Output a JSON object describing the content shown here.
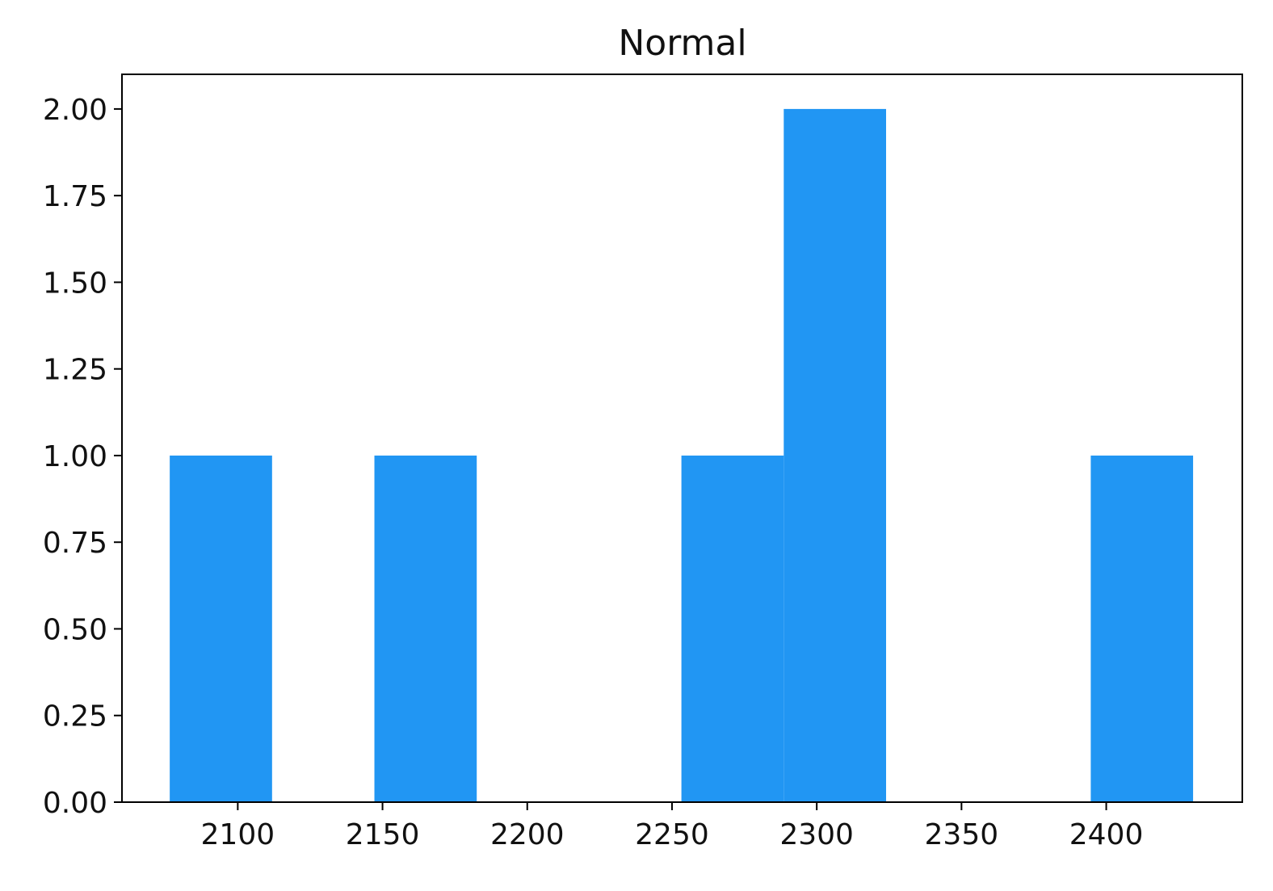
{
  "chart_data": {
    "type": "bar",
    "title": "Normal",
    "xlabel": "",
    "ylabel": "",
    "bar_color": "#2196f3",
    "xlim": [
      2060.0,
      2447.0
    ],
    "ylim": [
      0,
      2.1
    ],
    "bins": [
      {
        "x0": 2076.5,
        "x1": 2111.85,
        "count": 1
      },
      {
        "x0": 2111.85,
        "x1": 2147.2,
        "count": 0
      },
      {
        "x0": 2147.2,
        "x1": 2182.55,
        "count": 1
      },
      {
        "x0": 2182.55,
        "x1": 2217.9,
        "count": 0
      },
      {
        "x0": 2217.9,
        "x1": 2253.25,
        "count": 0
      },
      {
        "x0": 2253.25,
        "x1": 2288.6,
        "count": 1
      },
      {
        "x0": 2288.6,
        "x1": 2323.95,
        "count": 2
      },
      {
        "x0": 2323.95,
        "x1": 2359.3,
        "count": 0
      },
      {
        "x0": 2359.3,
        "x1": 2394.65,
        "count": 0
      },
      {
        "x0": 2394.65,
        "x1": 2430.0,
        "count": 1
      }
    ],
    "x_ticks": [
      {
        "value": 2100,
        "label": "2100"
      },
      {
        "value": 2150,
        "label": "2150"
      },
      {
        "value": 2200,
        "label": "2200"
      },
      {
        "value": 2250,
        "label": "2250"
      },
      {
        "value": 2300,
        "label": "2300"
      },
      {
        "value": 2350,
        "label": "2350"
      },
      {
        "value": 2400,
        "label": "2400"
      }
    ],
    "y_ticks": [
      {
        "value": 0.0,
        "label": "0.00"
      },
      {
        "value": 0.25,
        "label": "0.25"
      },
      {
        "value": 0.5,
        "label": "0.50"
      },
      {
        "value": 0.75,
        "label": "0.75"
      },
      {
        "value": 1.0,
        "label": "1.00"
      },
      {
        "value": 1.25,
        "label": "1.25"
      },
      {
        "value": 1.5,
        "label": "1.50"
      },
      {
        "value": 1.75,
        "label": "1.75"
      },
      {
        "value": 2.0,
        "label": "2.00"
      }
    ],
    "grid": false,
    "legend": "none"
  }
}
